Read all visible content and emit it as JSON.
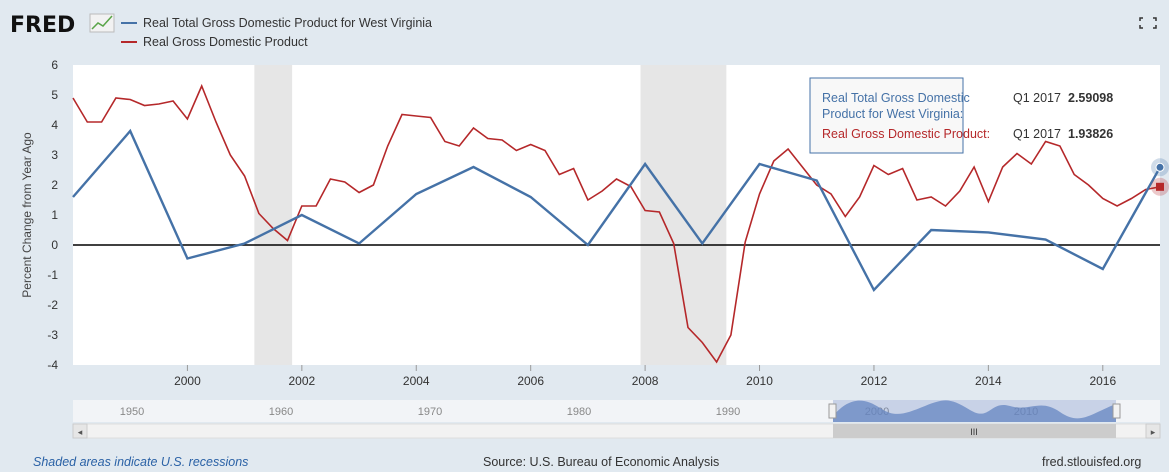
{
  "brand": {
    "logo_text": "FRED"
  },
  "footer": {
    "note": "Shaded areas indicate U.S. recessions",
    "source": "Source: U.S. Bureau of Economic Analysis",
    "site": "fred.stlouisfed.org"
  },
  "tooltip": {
    "series1_line1": "Real Total Gross Domestic",
    "series1_line2": "Product for West Virginia:",
    "series1_period": "Q1 2017",
    "series1_value": "2.59098",
    "series2_label": "Real Gross Domestic Product:",
    "series2_period": "Q1 2017",
    "series2_value": "1.93826"
  },
  "navigator": {
    "labels": [
      "1950",
      "1960",
      "1970",
      "1980",
      "1990",
      "2000",
      "2010"
    ],
    "scroll_grip": "III",
    "left_arrow": "◂",
    "right_arrow": "▸"
  },
  "colors": {
    "series_wv": "#4572a7",
    "series_us": "#b5282a",
    "recession": "#e6e6e6",
    "background": "#e1e9f0",
    "plot_bg": "#ffffff"
  },
  "icons": {
    "fullscreen": "fullscreen-icon",
    "logo_chart": "chart-graph-icon"
  },
  "chart_data": {
    "type": "line",
    "title": "",
    "xlabel": "",
    "ylabel": "Percent Change from Year Ago",
    "xlim": [
      1998.0,
      2017.0
    ],
    "ylim": [
      -4,
      6
    ],
    "y_ticks": [
      6,
      5,
      4,
      3,
      2,
      1,
      0,
      -1,
      -2,
      -3,
      -4
    ],
    "x_ticks": [
      2000,
      2002,
      2004,
      2006,
      2008,
      2010,
      2012,
      2014,
      2016
    ],
    "recessions": [
      [
        2001.17,
        2001.83
      ],
      [
        2007.92,
        2009.42
      ]
    ],
    "legend_position": "top-left",
    "grid": false,
    "series": [
      {
        "name": "Real Total Gross Domestic Product for West Virginia",
        "x": [
          1998.0,
          1999.0,
          2000.0,
          2001.0,
          2002.0,
          2003.0,
          2004.0,
          2005.0,
          2006.0,
          2007.0,
          2008.0,
          2009.0,
          2010.0,
          2011.0,
          2012.0,
          2013.0,
          2014.0,
          2015.0,
          2016.0,
          2017.0
        ],
        "values": [
          1.6,
          3.8,
          -0.45,
          0.05,
          1.0,
          0.05,
          1.7,
          2.6,
          1.6,
          0.0,
          2.7,
          0.05,
          2.7,
          2.15,
          -1.5,
          0.5,
          0.42,
          0.18,
          -0.8,
          2.59
        ]
      },
      {
        "name": "Real Gross Domestic Product",
        "x": [
          1998.0,
          1998.25,
          1998.5,
          1998.75,
          1999.0,
          1999.25,
          1999.5,
          1999.75,
          2000.0,
          2000.25,
          2000.5,
          2000.75,
          2001.0,
          2001.25,
          2001.5,
          2001.75,
          2002.0,
          2002.25,
          2002.5,
          2002.75,
          2003.0,
          2003.25,
          2003.5,
          2003.75,
          2004.0,
          2004.25,
          2004.5,
          2004.75,
          2005.0,
          2005.25,
          2005.5,
          2005.75,
          2006.0,
          2006.25,
          2006.5,
          2006.75,
          2007.0,
          2007.25,
          2007.5,
          2007.75,
          2008.0,
          2008.25,
          2008.5,
          2008.75,
          2009.0,
          2009.25,
          2009.5,
          2009.75,
          2010.0,
          2010.25,
          2010.5,
          2010.75,
          2011.0,
          2011.25,
          2011.5,
          2011.75,
          2012.0,
          2012.25,
          2012.5,
          2012.75,
          2013.0,
          2013.25,
          2013.5,
          2013.75,
          2014.0,
          2014.25,
          2014.5,
          2014.75,
          2015.0,
          2015.25,
          2015.5,
          2015.75,
          2016.0,
          2016.25,
          2016.5,
          2016.75,
          2017.0
        ],
        "values": [
          4.9,
          4.1,
          4.1,
          4.9,
          4.85,
          4.65,
          4.7,
          4.8,
          4.2,
          5.3,
          4.1,
          3.0,
          2.3,
          1.05,
          0.55,
          0.15,
          1.3,
          1.3,
          2.2,
          2.1,
          1.75,
          2.0,
          3.3,
          4.35,
          4.3,
          4.25,
          3.45,
          3.3,
          3.9,
          3.55,
          3.5,
          3.15,
          3.35,
          3.15,
          2.35,
          2.55,
          1.5,
          1.8,
          2.2,
          1.95,
          1.15,
          1.1,
          0.05,
          -2.75,
          -3.25,
          -3.9,
          -3.0,
          0.1,
          1.7,
          2.8,
          3.2,
          2.6,
          2.0,
          1.7,
          0.95,
          1.6,
          2.65,
          2.35,
          2.55,
          1.5,
          1.6,
          1.3,
          1.8,
          2.6,
          1.45,
          2.6,
          3.05,
          2.7,
          3.45,
          3.3,
          2.35,
          2.0,
          1.55,
          1.3,
          1.55,
          1.85,
          1.94
        ]
      }
    ]
  }
}
